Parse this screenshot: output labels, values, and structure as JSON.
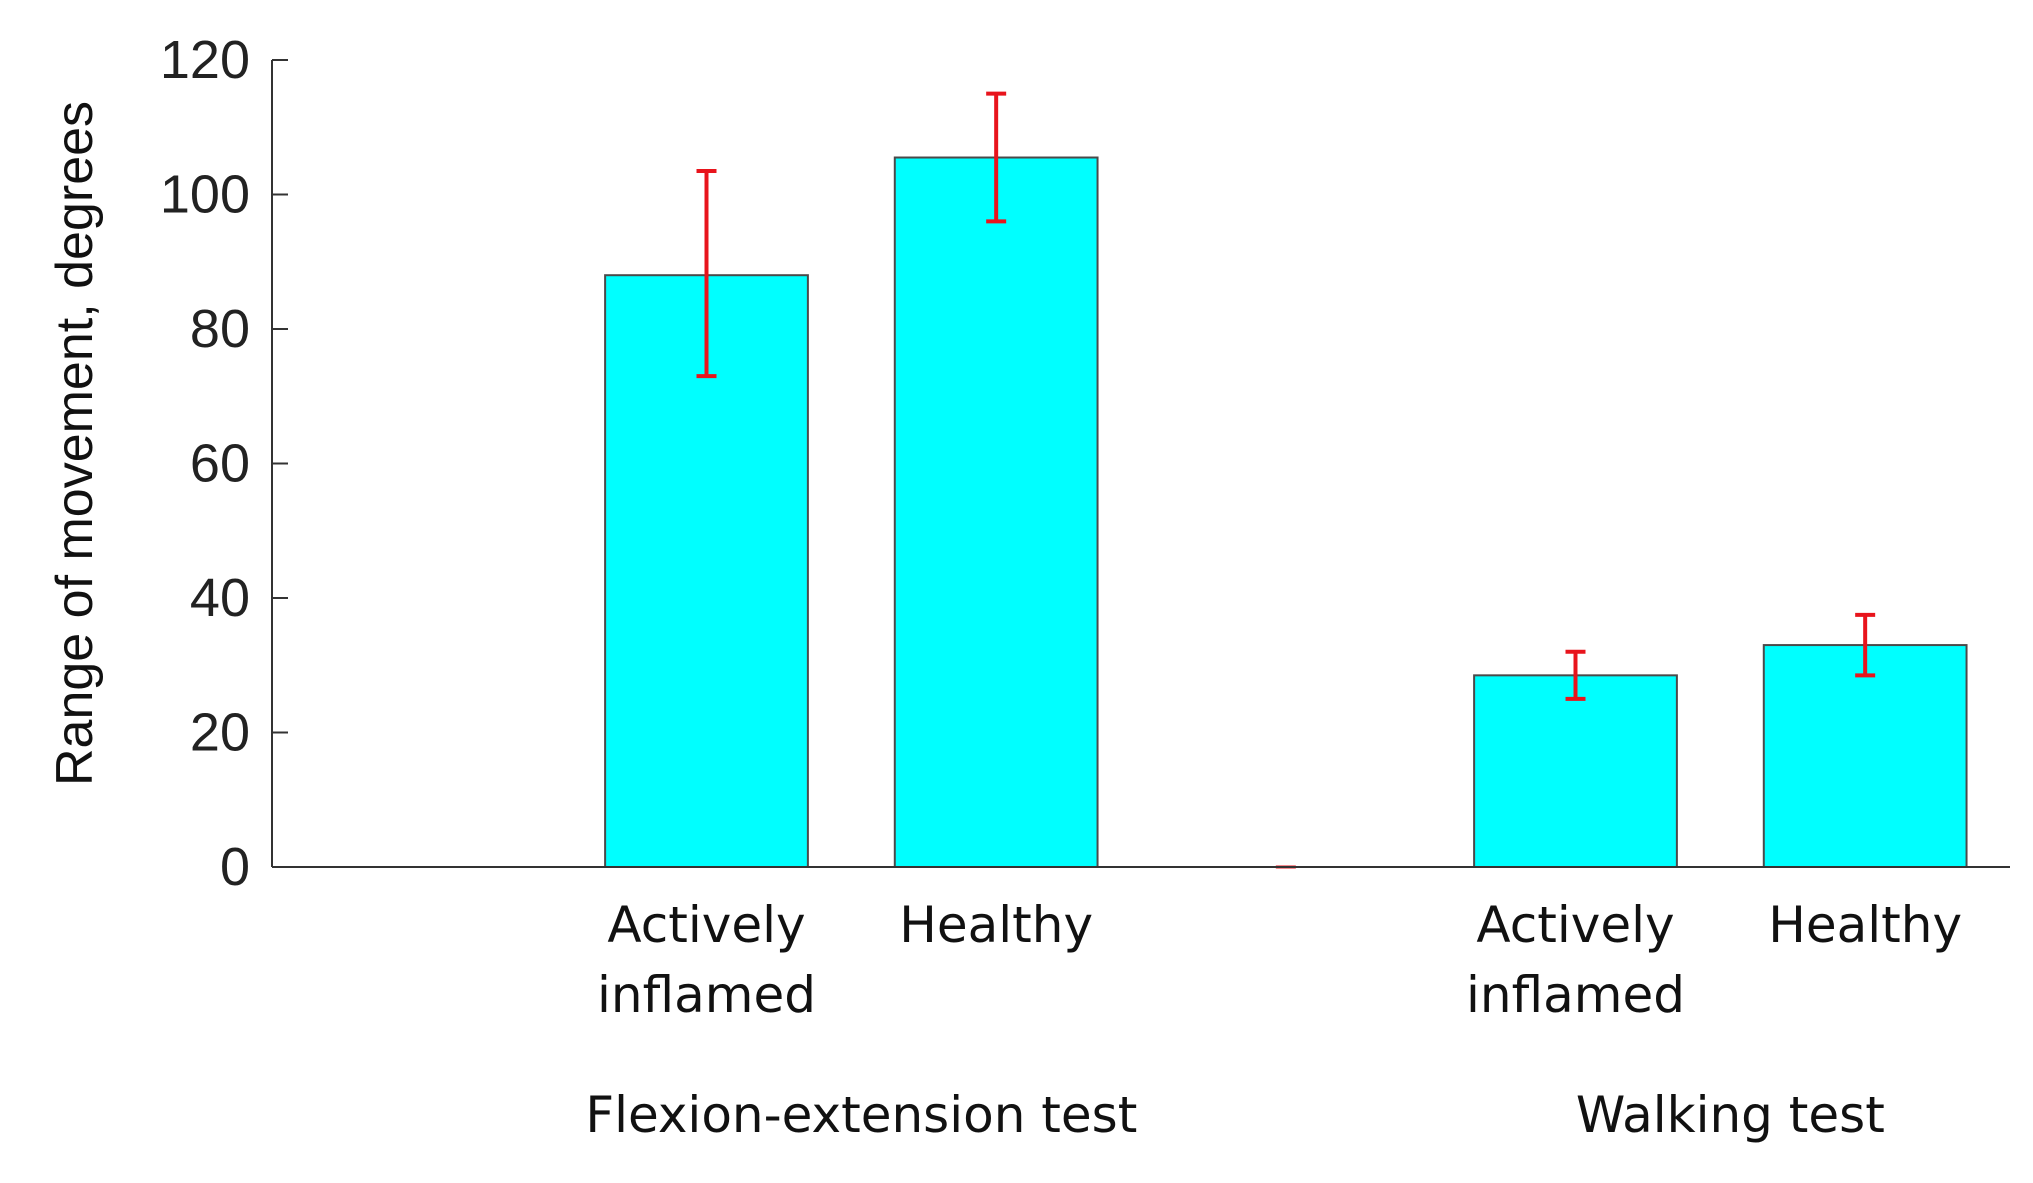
{
  "chart_data": {
    "type": "bar",
    "title": "",
    "xlabel": "",
    "ylabel": "Range of movement, degrees",
    "ylim": [
      0,
      120
    ],
    "yticks": [
      0,
      20,
      40,
      60,
      80,
      100,
      120
    ],
    "grid": false,
    "legend": "none",
    "colors": {
      "bar_fill": "#00FFFF",
      "bar_edge": "#4a4a4a",
      "error_bar": "#E8141C",
      "axis": "#333333"
    },
    "slots": [
      {
        "key": "empty-1",
        "value": null
      },
      {
        "key": "flexion-actively-inflamed",
        "label": [
          "Actively",
          "inflamed"
        ],
        "value": 88,
        "error_low": 73,
        "error_high": 103.5
      },
      {
        "key": "flexion-healthy",
        "label": [
          "Healthy"
        ],
        "value": 105.5,
        "error_low": 96,
        "error_high": 115
      },
      {
        "key": "separator",
        "value": 0,
        "separator": true
      },
      {
        "key": "walking-actively-inflamed",
        "label": [
          "Actively",
          "inflamed"
        ],
        "value": 28.5,
        "error_low": 25,
        "error_high": 32
      },
      {
        "key": "walking-healthy",
        "label": [
          "Healthy"
        ],
        "value": 33,
        "error_low": 28.5,
        "error_high": 37.5
      }
    ],
    "groups": [
      {
        "key": "flexion-extension",
        "label": "Flexion-extension test",
        "slots": [
          1,
          2
        ]
      },
      {
        "key": "walking",
        "label": "Walking test",
        "slots": [
          4,
          5
        ]
      }
    ]
  }
}
